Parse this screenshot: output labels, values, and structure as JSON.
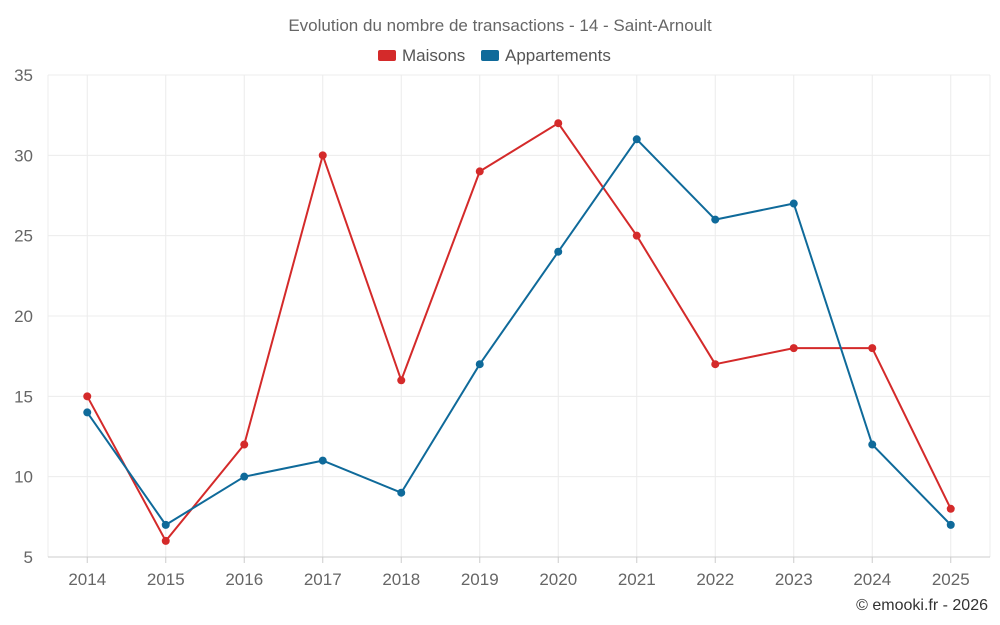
{
  "chart_data": {
    "type": "line",
    "title": "Evolution du nombre de transactions - 14 - Saint-Arnoult",
    "categories": [
      "2014",
      "2015",
      "2016",
      "2017",
      "2018",
      "2019",
      "2020",
      "2021",
      "2022",
      "2023",
      "2024",
      "2025"
    ],
    "series": [
      {
        "name": "Maisons",
        "color": "#d42a2a",
        "values": [
          15,
          6,
          12,
          30,
          16,
          29,
          32,
          25,
          17,
          18,
          18,
          8
        ]
      },
      {
        "name": "Appartements",
        "color": "#0f6a9a",
        "values": [
          14,
          7,
          10,
          11,
          9,
          17,
          24,
          31,
          26,
          27,
          12,
          7
        ]
      }
    ],
    "yticks": [
      5,
      10,
      15,
      20,
      25,
      30,
      35
    ],
    "ylim": [
      5,
      35
    ],
    "grid": true,
    "legend": "top-center",
    "credit": "© emooki.fr - 2026"
  }
}
